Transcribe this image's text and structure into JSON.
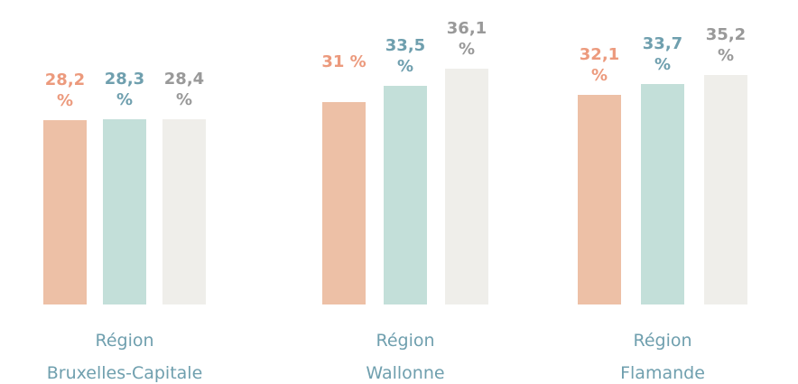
{
  "chart_data": {
    "type": "bar",
    "categories": [
      [
        "Région",
        "Bruxelles-Capitale"
      ],
      [
        "Région",
        "Wallonne"
      ],
      [
        "Région",
        "Flamande"
      ]
    ],
    "series": [
      {
        "color": "#edc0a6",
        "label_color": "#ec9a7d",
        "values": [
          28.2,
          31,
          32.1
        ],
        "value_labels": [
          "28,2 %",
          "31 %",
          "32,1 %"
        ]
      },
      {
        "color": "#c3dfd9",
        "label_color": "#6f9fae",
        "values": [
          28.3,
          33.5,
          33.7
        ],
        "value_labels": [
          "28,3 %",
          "33,5 %",
          "33,7 %"
        ]
      },
      {
        "color": "#efeeea",
        "label_color": "#999999",
        "values": [
          28.4,
          36.1,
          35.2
        ],
        "value_labels": [
          "28,4 %",
          "36,1 %",
          "35,2 %"
        ]
      }
    ]
  }
}
